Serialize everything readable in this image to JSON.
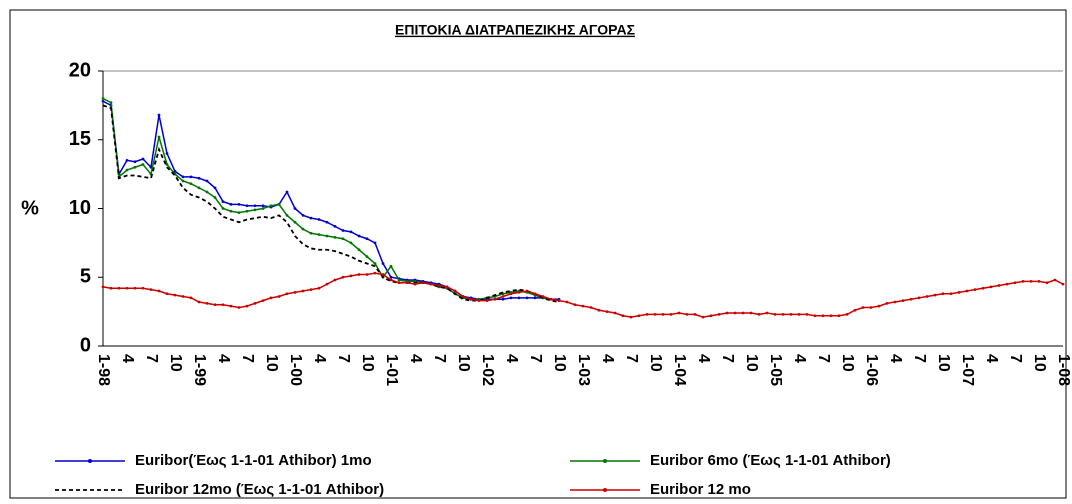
{
  "chart_data": {
    "type": "line",
    "title": "ΕΠΙΤΟΚΙΑ ΔΙΑΤΡΑΠΕΖΙΚΗΣ ΑΓΟΡΑΣ",
    "y_label": "%",
    "ylim": [
      0,
      20
    ],
    "yticks": [
      0,
      5,
      10,
      15,
      20
    ],
    "grid": false,
    "legend": "bottom",
    "categories": [
      "1-98",
      null,
      null,
      "4",
      null,
      null,
      "7",
      null,
      null,
      "10",
      null,
      null,
      "1-99",
      null,
      null,
      "4",
      null,
      null,
      "7",
      null,
      null,
      "10",
      null,
      null,
      "1-00",
      null,
      null,
      "4",
      null,
      null,
      "7",
      null,
      null,
      "10",
      null,
      null,
      "1-01",
      null,
      null,
      "4",
      null,
      null,
      "7",
      null,
      null,
      "10",
      null,
      null,
      "1-02",
      null,
      null,
      "4",
      null,
      null,
      "7",
      null,
      null,
      "10",
      null,
      null,
      "1-03",
      null,
      null,
      "4",
      null,
      null,
      "7",
      null,
      null,
      "10",
      null,
      null,
      "1-04",
      null,
      null,
      "4",
      null,
      null,
      "7",
      null,
      null,
      "10",
      null,
      null,
      "1-05",
      null,
      null,
      "4",
      null,
      null,
      "7",
      null,
      null,
      "10",
      null,
      null,
      "1-06",
      null,
      null,
      "4",
      null,
      null,
      "7",
      null,
      null,
      "10",
      null,
      null,
      "1-07",
      null,
      null,
      "4",
      null,
      null,
      "7",
      null,
      null,
      "10",
      null,
      null,
      "1-08"
    ],
    "series": [
      {
        "name": "Euribor(Έως 1-1-01 Athibor) 1mo",
        "color": "#0000cc",
        "marker": true,
        "dash": false,
        "values": [
          17.8,
          17.5,
          12.5,
          13.5,
          13.4,
          13.6,
          13.0,
          16.8,
          14.0,
          12.7,
          12.3,
          12.3,
          12.2,
          12.0,
          11.5,
          10.5,
          10.3,
          10.3,
          10.2,
          10.2,
          10.2,
          10.1,
          10.3,
          11.2,
          10.0,
          9.5,
          9.3,
          9.2,
          9.0,
          8.7,
          8.4,
          8.3,
          8.0,
          7.8,
          7.5,
          6.0,
          5.0,
          4.9,
          4.8,
          4.8,
          4.7,
          4.6,
          4.5,
          4.3,
          4.0,
          3.6,
          3.5,
          3.4,
          3.4,
          3.4,
          3.4,
          3.5,
          3.5,
          3.5,
          3.5,
          3.5,
          3.4,
          3.4,
          null,
          null,
          null,
          null,
          null,
          null,
          null,
          null,
          null,
          null,
          null,
          null,
          null,
          null,
          null,
          null,
          null,
          null,
          null,
          null,
          null,
          null,
          null,
          null,
          null,
          null,
          null,
          null,
          null,
          null,
          null,
          null,
          null,
          null,
          null,
          null,
          null,
          null,
          null,
          null,
          null,
          null,
          null,
          null,
          null,
          null,
          null,
          null,
          null,
          null,
          null,
          null,
          null,
          null,
          null,
          null,
          null,
          null,
          null,
          null,
          null,
          null,
          null
        ]
      },
      {
        "name": "Euribor 6mo (Έως 1-1-01 Athibor)",
        "color": "#007700",
        "marker": true,
        "dash": false,
        "values": [
          18.0,
          17.7,
          12.3,
          12.8,
          13.0,
          13.2,
          12.5,
          15.2,
          13.2,
          12.5,
          12.0,
          11.8,
          11.5,
          11.2,
          10.8,
          10.0,
          9.8,
          9.7,
          9.8,
          9.9,
          10.0,
          10.2,
          10.3,
          9.5,
          9.0,
          8.5,
          8.2,
          8.1,
          8.0,
          7.9,
          7.8,
          7.5,
          7.0,
          6.5,
          6.0,
          5.0,
          5.8,
          4.8,
          4.7,
          4.7,
          4.6,
          4.5,
          4.3,
          4.2,
          3.8,
          3.5,
          3.4,
          3.4,
          3.5,
          3.6,
          3.8,
          3.9,
          4.0,
          3.9,
          3.7,
          3.5,
          3.4,
          3.3,
          null,
          null,
          null,
          null,
          null,
          null,
          null,
          null,
          null,
          null,
          null,
          null,
          null,
          null,
          null,
          null,
          null,
          null,
          null,
          null,
          null,
          null,
          null,
          null,
          null,
          null,
          null,
          null,
          null,
          null,
          null,
          null,
          null,
          null,
          null,
          null,
          null,
          null,
          null,
          null,
          null,
          null,
          null,
          null,
          null,
          null,
          null,
          null,
          null,
          null,
          null,
          null,
          null,
          null,
          null,
          null,
          null,
          null,
          null,
          null,
          null,
          null,
          null
        ]
      },
      {
        "name": "Euribor 12mo (Έως 1-1-01 Athibor)",
        "color": "#000000",
        "marker": false,
        "dash": true,
        "values": [
          17.5,
          17.3,
          12.2,
          12.4,
          12.4,
          12.3,
          12.2,
          14.3,
          13.0,
          12.4,
          11.5,
          11.0,
          10.8,
          10.5,
          10.0,
          9.4,
          9.2,
          9.0,
          9.2,
          9.3,
          9.4,
          9.3,
          9.5,
          9.0,
          8.0,
          7.4,
          7.1,
          7.0,
          7.0,
          6.9,
          6.7,
          6.5,
          6.2,
          6.0,
          5.8,
          5.0,
          4.7,
          4.6,
          4.6,
          4.6,
          4.6,
          4.5,
          4.3,
          4.2,
          3.8,
          3.4,
          3.3,
          3.3,
          3.5,
          3.7,
          3.9,
          4.0,
          4.1,
          4.0,
          3.8,
          3.5,
          3.3,
          3.2,
          null,
          null,
          null,
          null,
          null,
          null,
          null,
          null,
          null,
          null,
          null,
          null,
          null,
          null,
          null,
          null,
          null,
          null,
          null,
          null,
          null,
          null,
          null,
          null,
          null,
          null,
          null,
          null,
          null,
          null,
          null,
          null,
          null,
          null,
          null,
          null,
          null,
          null,
          null,
          null,
          null,
          null,
          null,
          null,
          null,
          null,
          null,
          null,
          null,
          null,
          null,
          null,
          null,
          null,
          null,
          null,
          null,
          null,
          null,
          null,
          null,
          null,
          null
        ]
      },
      {
        "name": "Euribor 12 mo",
        "color": "#cc0000",
        "marker": true,
        "dash": false,
        "values": [
          4.3,
          4.2,
          4.2,
          4.2,
          4.2,
          4.2,
          4.1,
          4.0,
          3.8,
          3.7,
          3.6,
          3.5,
          3.2,
          3.1,
          3.0,
          3.0,
          2.9,
          2.8,
          2.9,
          3.1,
          3.3,
          3.5,
          3.6,
          3.8,
          3.9,
          4.0,
          4.1,
          4.2,
          4.5,
          4.8,
          5.0,
          5.1,
          5.2,
          5.2,
          5.3,
          5.2,
          4.8,
          4.6,
          4.6,
          4.5,
          4.6,
          4.5,
          4.4,
          4.3,
          4.0,
          3.6,
          3.4,
          3.3,
          3.3,
          3.4,
          3.6,
          3.8,
          3.9,
          4.0,
          3.8,
          3.6,
          3.4,
          3.3,
          3.2,
          3.0,
          2.9,
          2.8,
          2.6,
          2.5,
          2.4,
          2.2,
          2.1,
          2.2,
          2.3,
          2.3,
          2.3,
          2.3,
          2.4,
          2.3,
          2.3,
          2.1,
          2.2,
          2.3,
          2.4,
          2.4,
          2.4,
          2.4,
          2.3,
          2.4,
          2.3,
          2.3,
          2.3,
          2.3,
          2.3,
          2.2,
          2.2,
          2.2,
          2.2,
          2.3,
          2.6,
          2.8,
          2.8,
          2.9,
          3.1,
          3.2,
          3.3,
          3.4,
          3.5,
          3.6,
          3.7,
          3.8,
          3.8,
          3.9,
          4.0,
          4.1,
          4.2,
          4.3,
          4.4,
          4.5,
          4.6,
          4.7,
          4.7,
          4.7,
          4.6,
          4.8,
          4.5
        ]
      }
    ]
  }
}
